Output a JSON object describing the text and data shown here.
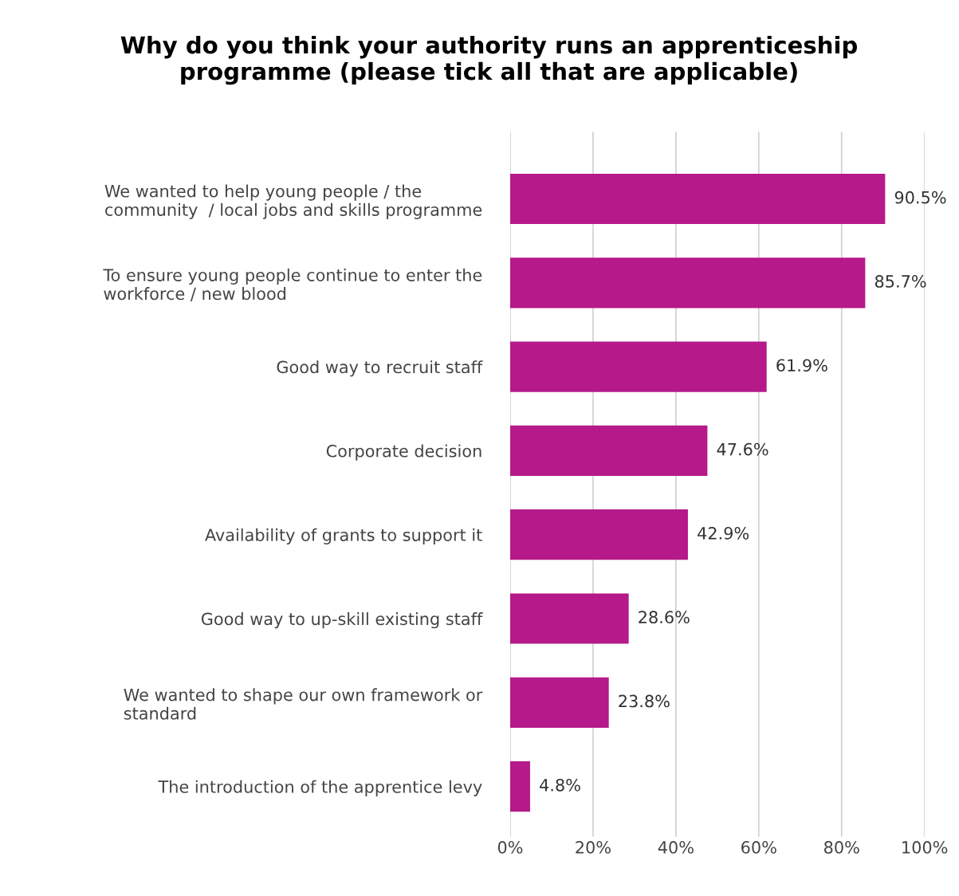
{
  "chart_data": {
    "type": "bar",
    "orientation": "horizontal",
    "title": "Why do you think your authority runs an apprenticeship\nprogramme (please tick all that are applicable)",
    "categories": [
      "We wanted to help young people / the\ncommunity  / local jobs and skills programme",
      "To ensure young people continue to enter the\nworkforce / new blood",
      "Good way to recruit staff",
      "Corporate decision",
      "Availability of grants to support it",
      "Good way to up-skill existing staff",
      "We wanted to shape our own framework or\nstandard",
      "The introduction of the apprentice levy"
    ],
    "values": [
      90.5,
      85.7,
      61.9,
      47.6,
      42.9,
      28.6,
      23.8,
      4.8
    ],
    "value_labels": [
      "90.5%",
      "85.7%",
      "61.9%",
      "47.6%",
      "42.9%",
      "28.6%",
      "23.8%",
      "4.8%"
    ],
    "color": "#b5198a",
    "xlim": [
      0,
      100
    ],
    "xticks": [
      {
        "value": 0,
        "label": "0%"
      },
      {
        "value": 20,
        "label": "20%"
      },
      {
        "value": 40,
        "label": "40%"
      },
      {
        "value": 60,
        "label": "60%"
      },
      {
        "value": 80,
        "label": "80%"
      },
      {
        "value": 100,
        "label": "100%"
      }
    ],
    "grid": "x",
    "legend": false
  }
}
